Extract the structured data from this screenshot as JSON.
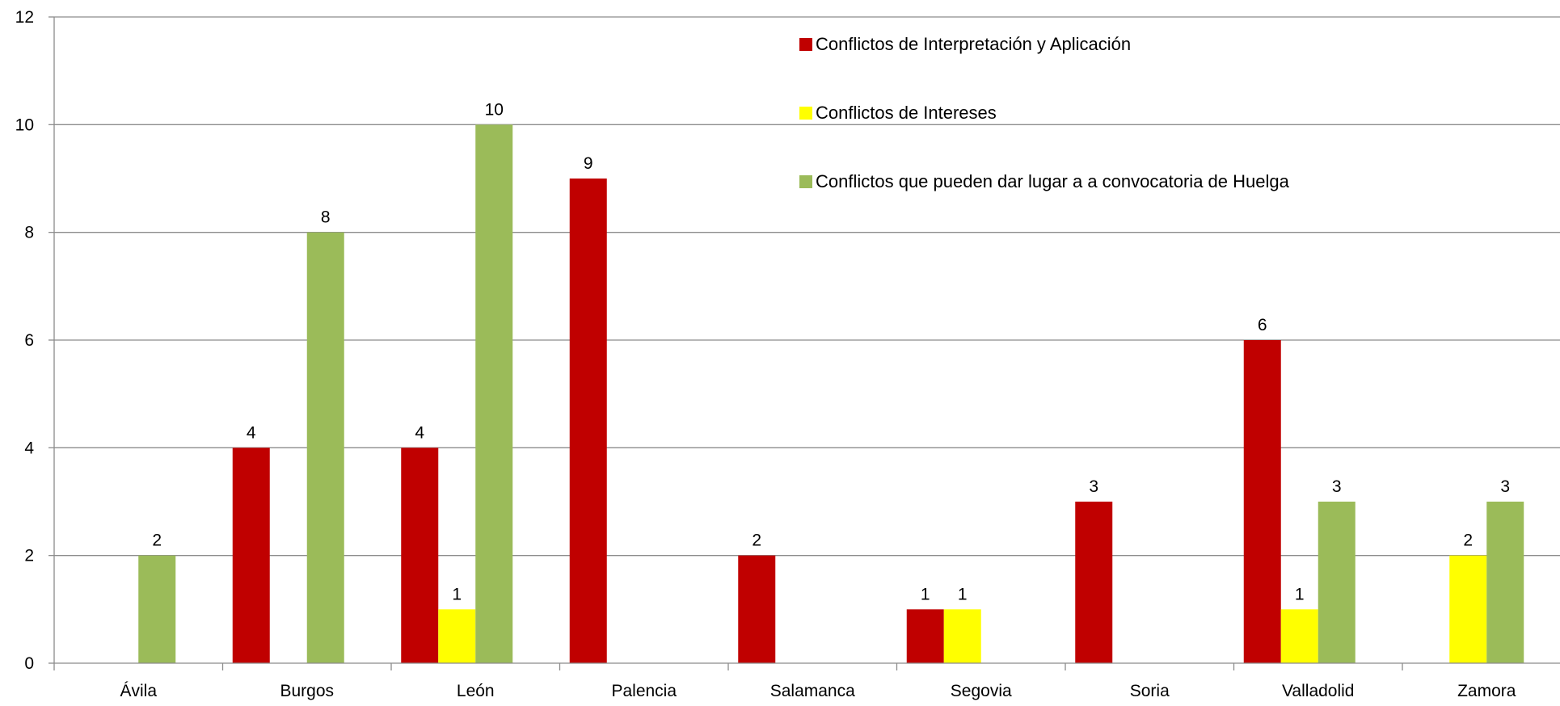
{
  "chart_data": {
    "type": "bar",
    "title": "",
    "xlabel": "",
    "ylabel": "",
    "ylim": [
      0,
      12
    ],
    "yticks": [
      0,
      2,
      4,
      6,
      8,
      10,
      12
    ],
    "grid": true,
    "legend_position": "top-right",
    "categories": [
      "Ávila",
      "Burgos",
      "León",
      "Palencia",
      "Salamanca",
      "Segovia",
      "Soria",
      "Valladolid",
      "Zamora"
    ],
    "series": [
      {
        "name": "Conflictos de Interpretación y Aplicación",
        "color": "#C00000",
        "values": [
          null,
          4,
          4,
          9,
          2,
          1,
          3,
          6,
          null
        ]
      },
      {
        "name": "Conflictos de Intereses",
        "color": "#FFFF00",
        "values": [
          null,
          null,
          1,
          null,
          null,
          1,
          null,
          1,
          2
        ]
      },
      {
        "name": "Conflictos que pueden dar lugar a a convocatoria de Huelga",
        "color": "#9BBB59",
        "values": [
          2,
          8,
          10,
          null,
          null,
          null,
          null,
          3,
          3
        ]
      }
    ]
  }
}
